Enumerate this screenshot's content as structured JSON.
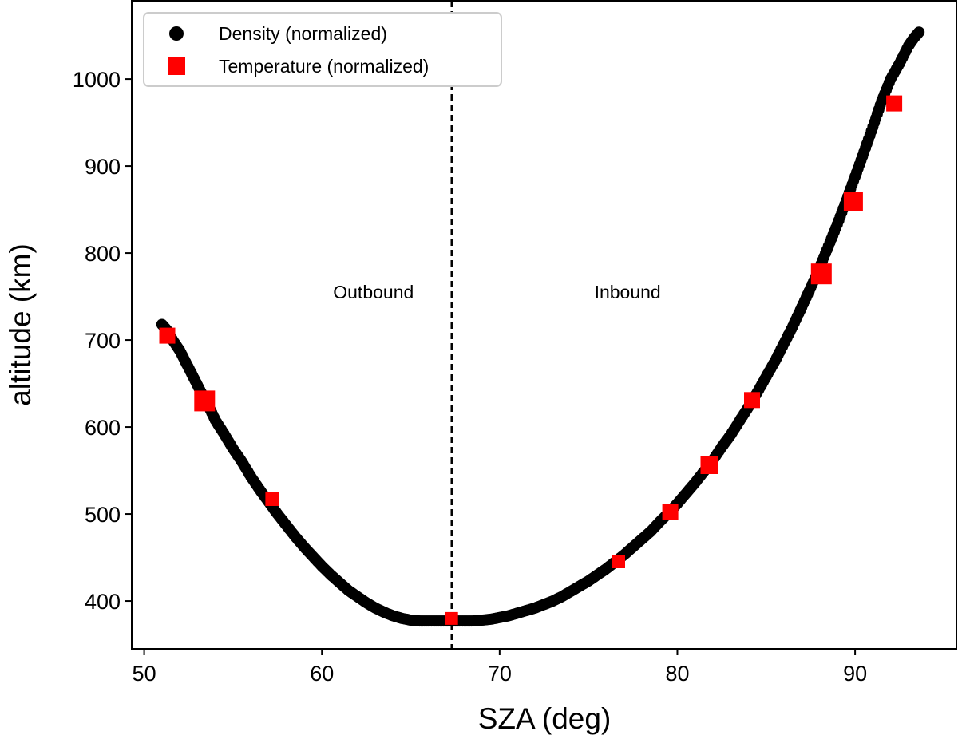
{
  "chart_data": {
    "type": "scatter",
    "xlabel": "SZA (deg)",
    "ylabel": "altitude (km)",
    "xlim": [
      49.3,
      95.7
    ],
    "ylim": [
      345,
      1090
    ],
    "xticks": [
      50,
      60,
      70,
      80,
      90
    ],
    "yticks": [
      400,
      500,
      600,
      700,
      800,
      900,
      1000
    ],
    "grid": false,
    "legend_position": "top-left",
    "divider": {
      "x": 67.3,
      "style": "dashed"
    },
    "annotations": [
      {
        "text": "Outbound",
        "x": 62.9,
        "y": 755
      },
      {
        "text": "Inbound",
        "x": 77.2,
        "y": 755
      }
    ],
    "series": [
      {
        "name": "Density (normalized)",
        "marker": "circle",
        "color": "#000000",
        "x": [
          51.0,
          51.3,
          51.6,
          52.0,
          52.4,
          52.8,
          53.2,
          53.6,
          54.0,
          54.5,
          55.0,
          55.5,
          56.0,
          56.5,
          57.0,
          57.5,
          58.0,
          58.5,
          59.0,
          59.5,
          60.0,
          60.5,
          61.0,
          61.5,
          62.0,
          62.5,
          63.0,
          63.5,
          64.0,
          64.5,
          65.0,
          65.5,
          66.0,
          66.5,
          67.0,
          67.5,
          68.0,
          68.5,
          69.0,
          69.5,
          70.0,
          70.5,
          71.0,
          71.5,
          72.0,
          72.5,
          73.0,
          73.5,
          74.0,
          74.5,
          75.0,
          75.5,
          76.0,
          76.5,
          77.0,
          77.5,
          78.0,
          78.5,
          79.0,
          79.5,
          80.0,
          80.5,
          81.0,
          81.5,
          82.0,
          82.5,
          83.0,
          83.5,
          84.0,
          84.5,
          85.0,
          85.5,
          86.0,
          86.5,
          87.0,
          87.5,
          88.0,
          88.5,
          89.0,
          89.5,
          90.0,
          90.5,
          91.0,
          91.5,
          92.0,
          92.5,
          93.0,
          93.3,
          93.6
        ],
        "y": [
          718,
          711,
          700,
          688,
          672,
          656,
          640,
          625,
          608,
          592,
          575,
          560,
          543,
          528,
          514,
          500,
          487,
          474,
          462,
          451,
          440,
          430,
          421,
          412,
          405,
          398,
          392,
          387,
          383,
          380,
          378,
          377,
          377,
          377,
          377,
          377,
          377,
          377,
          378,
          379,
          381,
          383,
          386,
          389,
          392,
          396,
          400,
          405,
          411,
          417,
          423,
          430,
          437,
          445,
          453,
          462,
          471,
          480,
          491,
          501,
          512,
          524,
          536,
          549,
          562,
          577,
          591,
          607,
          623,
          640,
          658,
          676,
          696,
          716,
          738,
          760,
          783,
          808,
          833,
          860,
          888,
          916,
          945,
          975,
          1000,
          1018,
          1038,
          1047,
          1054
        ]
      },
      {
        "name": "Temperature (normalized)",
        "marker": "square",
        "color": "#ff0000",
        "x": [
          51.3,
          53.4,
          57.2,
          67.3,
          76.7,
          79.6,
          81.8,
          84.2,
          88.1,
          89.9,
          92.2
        ],
        "y": [
          705,
          630,
          517,
          380,
          445,
          502,
          556,
          631,
          776,
          859,
          972
        ],
        "sizes": [
          20,
          26,
          17,
          16,
          16,
          20,
          22,
          20,
          26,
          24,
          20
        ]
      }
    ]
  }
}
